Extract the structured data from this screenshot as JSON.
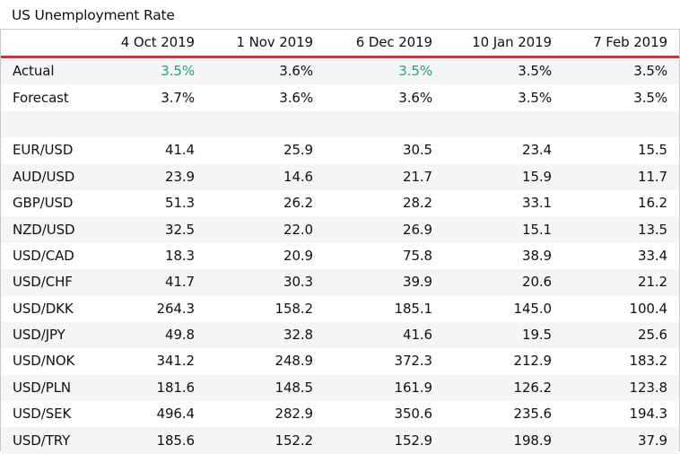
{
  "title": "US Unemployment Rate",
  "table": {
    "columns": [
      "",
      "4 Oct 2019",
      "1 Nov 2019",
      "6 Dec 2019",
      "10 Jan 2019",
      "7 Feb 2019"
    ],
    "colors": {
      "accent_rule": "#c8323a",
      "highlight_green": "#2e9e6b",
      "row_shade": "#f4f5f7"
    },
    "rows": [
      {
        "label": "Actual",
        "values": [
          "3.5%",
          "3.6%",
          "3.5%",
          "3.5%",
          "3.5%"
        ],
        "highlight": [
          true,
          false,
          true,
          false,
          false
        ]
      },
      {
        "label": "Forecast",
        "values": [
          "3.7%",
          "3.6%",
          "3.6%",
          "3.5%",
          "3.5%"
        ]
      },
      {
        "label": "",
        "values": [
          "",
          "",
          "",
          "",
          ""
        ]
      },
      {
        "label": "EUR/USD",
        "values": [
          "41.4",
          "25.9",
          "30.5",
          "23.4",
          "15.5"
        ]
      },
      {
        "label": "AUD/USD",
        "values": [
          "23.9",
          "14.6",
          "21.7",
          "15.9",
          "11.7"
        ]
      },
      {
        "label": "GBP/USD",
        "values": [
          "51.3",
          "26.2",
          "28.2",
          "33.1",
          "16.2"
        ]
      },
      {
        "label": "NZD/USD",
        "values": [
          "32.5",
          "22.0",
          "26.9",
          "15.1",
          "13.5"
        ]
      },
      {
        "label": "USD/CAD",
        "values": [
          "18.3",
          "20.9",
          "75.8",
          "38.9",
          "33.4"
        ]
      },
      {
        "label": "USD/CHF",
        "values": [
          "41.7",
          "30.3",
          "39.9",
          "20.6",
          "21.2"
        ]
      },
      {
        "label": "USD/DKK",
        "values": [
          "264.3",
          "158.2",
          "185.1",
          "145.0",
          "100.4"
        ]
      },
      {
        "label": "USD/JPY",
        "values": [
          "49.8",
          "32.8",
          "41.6",
          "19.5",
          "25.6"
        ]
      },
      {
        "label": "USD/NOK",
        "values": [
          "341.2",
          "248.9",
          "372.3",
          "212.9",
          "183.2"
        ]
      },
      {
        "label": "USD/PLN",
        "values": [
          "181.6",
          "148.5",
          "161.9",
          "126.2",
          "123.8"
        ]
      },
      {
        "label": "USD/SEK",
        "values": [
          "496.4",
          "282.9",
          "350.6",
          "235.6",
          "194.3"
        ]
      },
      {
        "label": "USD/TRY",
        "values": [
          "185.6",
          "152.2",
          "152.9",
          "198.9",
          "37.9"
        ]
      }
    ]
  }
}
